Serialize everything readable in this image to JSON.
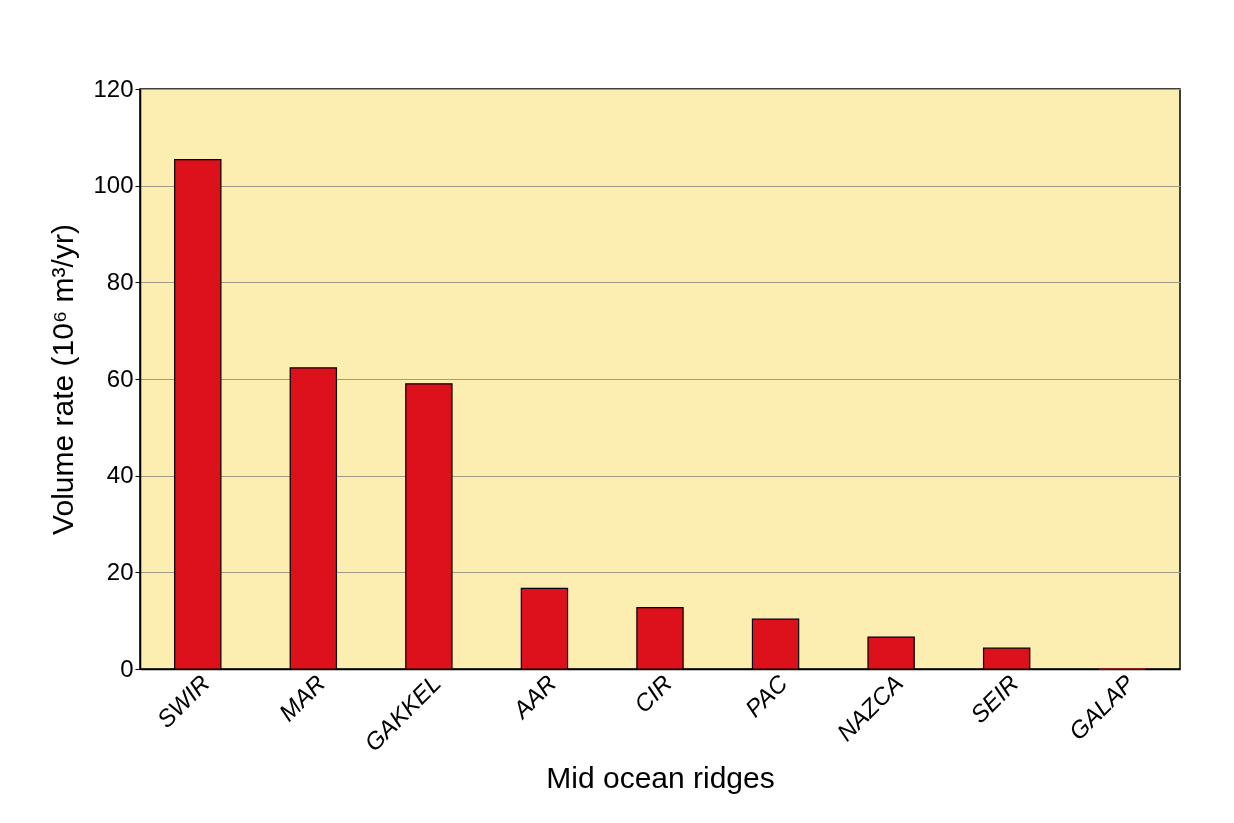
{
  "chart_data": {
    "type": "bar",
    "xlabel": "Mid ocean ridges",
    "ylabel": "Volume rate (10⁶ m³/yr)",
    "categories": [
      "SWIR",
      "MAR",
      "GAKKEL",
      "AAR",
      "CIR",
      "PAC",
      "NAZCA",
      "SEIR",
      "GALAP"
    ],
    "values": [
      105.4,
      62.3,
      59.0,
      16.7,
      12.7,
      10.3,
      6.6,
      4.3,
      0
    ],
    "color": "#dc111b",
    "ylim": [
      0,
      120
    ],
    "yticks": [
      0,
      20,
      40,
      60,
      80,
      100,
      120
    ],
    "grid": "y"
  }
}
